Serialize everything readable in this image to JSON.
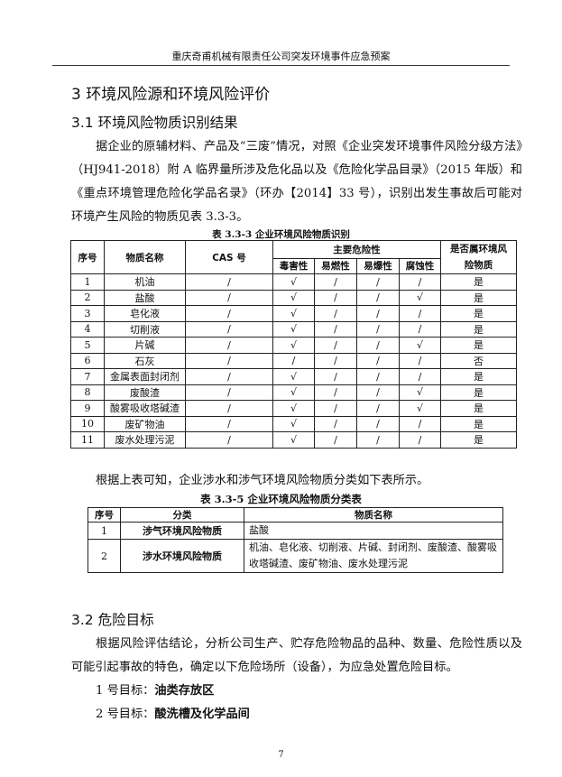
{
  "header": "重庆奇甫机械有限责任公司突发环境事件应急预案",
  "h1": "3  环境风险源和环境风险评价",
  "h2a": "3.1  环境风险物质识别结果",
  "para1": "据企业的原辅材料、产品及“三废”情况，对照《企业突发环境事件风险分级方法》（HJ941-2018）附 A 临界量所涉及危化品以及《危险化学品目录》（2015 年版）和《重点环境管理危险化学品名录》（环办【2014】33 号），识别出发生事故后可能对环境产生风险的物质见表 3.3-3。",
  "table1": {
    "caption": "表 3.3-3    企业环境风险物质识别",
    "headers": {
      "no": "序号",
      "name": "物质名称",
      "cas": "CAS 号",
      "hazard": "主要危险性",
      "toxic": "毒害性",
      "flammable": "易燃性",
      "explosive": "易爆性",
      "corrosive": "腐蚀性",
      "is_risk": "是否属环境风险物质"
    },
    "rows": [
      [
        "1",
        "机油",
        "/",
        "√",
        "/",
        "/",
        "/",
        "是"
      ],
      [
        "2",
        "盐酸",
        "/",
        "√",
        "/",
        "/",
        "√",
        "是"
      ],
      [
        "3",
        "皂化液",
        "/",
        "√",
        "/",
        "/",
        "/",
        "是"
      ],
      [
        "4",
        "切削液",
        "/",
        "√",
        "/",
        "/",
        "/",
        "是"
      ],
      [
        "5",
        "片碱",
        "/",
        "√",
        "/",
        "/",
        "√",
        "是"
      ],
      [
        "6",
        "石灰",
        "/",
        "/",
        "/",
        "/",
        "/",
        "否"
      ],
      [
        "7",
        "金属表面封闭剂",
        "/",
        "√",
        "/",
        "/",
        "/",
        "是"
      ],
      [
        "8",
        "废酸渣",
        "/",
        "√",
        "/",
        "/",
        "√",
        "是"
      ],
      [
        "9",
        "酸雾吸收塔碱渣",
        "/",
        "√",
        "/",
        "/",
        "√",
        "是"
      ],
      [
        "10",
        "废矿物油",
        "/",
        "√",
        "/",
        "/",
        "/",
        "是"
      ],
      [
        "11",
        "废水处理污泥",
        "/",
        "√",
        "/",
        "/",
        "/",
        "是"
      ]
    ]
  },
  "para2": "根据上表可知，企业涉水和涉气环境风险物质分类如下表所示。",
  "table2": {
    "caption": "表 3.3-5    企业环境风险物质分类表",
    "headers": {
      "no": "序号",
      "category": "分类",
      "names": "物质名称"
    },
    "rows": [
      [
        "1",
        "涉气环境风险物质",
        "盐酸"
      ],
      [
        "2",
        "涉水环境风险物质",
        "机油、皂化液、切削液、片碱、封闭剂、废酸渣、酸雾吸收塔碱渣、废矿物油、废水处理污泥"
      ]
    ]
  },
  "h2b": "3.2  危险目标",
  "para3": "根据风险评估结论，分析公司生产、贮存危险物品的品种、数量、危险性质以及可能引起事故的特色，确定以下危险场所（设备），为应急处置危险目标。",
  "targets": [
    {
      "label": "1 号目标：",
      "value": "油类存放区"
    },
    {
      "label": "2 号目标：",
      "value": "酸洗槽及化学品间"
    }
  ],
  "page_number": "7"
}
